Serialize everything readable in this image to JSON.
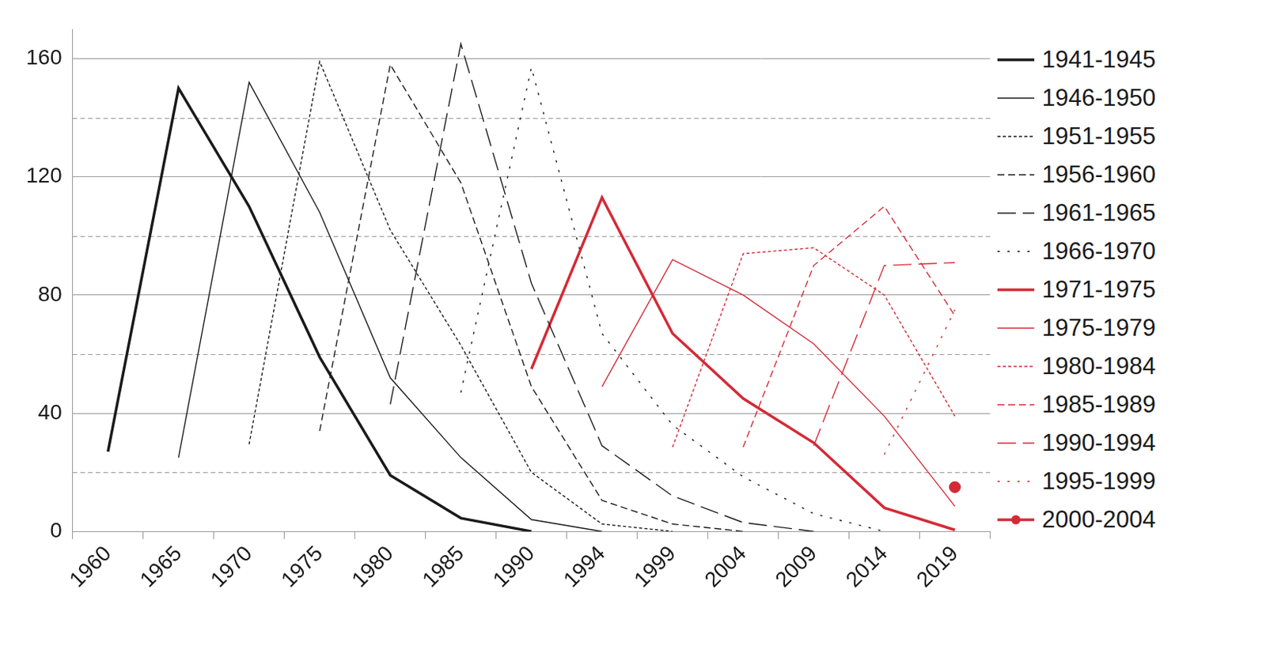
{
  "chart_data": {
    "type": "line",
    "categories": [
      "1960",
      "1965",
      "1970",
      "1975",
      "1980",
      "1985",
      "1990",
      "1994",
      "1999",
      "2004",
      "2009",
      "2014",
      "2019"
    ],
    "ylim": [
      0,
      170
    ],
    "yticks": [
      0,
      40,
      80,
      120,
      160
    ],
    "grid": true,
    "legend": "right",
    "series": [
      {
        "name": "1941-1945",
        "color": "#1a1a1a",
        "line_style": "thick",
        "values": [
          27,
          150,
          110,
          59,
          19,
          4.5,
          0,
          null,
          null,
          null,
          null,
          null,
          null
        ]
      },
      {
        "name": "1946-1950",
        "color": "#1a1a1a",
        "line_style": "solid",
        "values": [
          null,
          25,
          152,
          108,
          52,
          25,
          4,
          0,
          null,
          null,
          null,
          null,
          null
        ]
      },
      {
        "name": "1951-1955",
        "color": "#1a1a1a",
        "line_style": "dotted",
        "values": [
          null,
          null,
          29.5,
          159,
          102,
          63,
          20,
          2.5,
          0,
          null,
          null,
          null,
          null
        ]
      },
      {
        "name": "1956-1960",
        "color": "#1a1a1a",
        "line_style": "dashed",
        "values": [
          null,
          null,
          null,
          34,
          158,
          118,
          49,
          10.5,
          2.5,
          0,
          null,
          null,
          null
        ]
      },
      {
        "name": "1961-1965",
        "color": "#1a1a1a",
        "line_style": "long-dashed",
        "values": [
          null,
          null,
          null,
          null,
          43,
          165,
          84,
          29,
          12,
          3,
          0,
          null,
          null
        ]
      },
      {
        "name": "1966-1970",
        "color": "#1a1a1a",
        "line_style": "sparse-dotted",
        "values": [
          null,
          null,
          null,
          null,
          null,
          47,
          157,
          67,
          36,
          18.5,
          6,
          0,
          null
        ]
      },
      {
        "name": "1971-1975",
        "color": "#d42a36",
        "line_style": "thick",
        "values": [
          null,
          null,
          null,
          null,
          null,
          null,
          55,
          113,
          67,
          45,
          30,
          8,
          0.5
        ]
      },
      {
        "name": "1975-1979",
        "color": "#d42a36",
        "line_style": "solid",
        "values": [
          null,
          null,
          null,
          null,
          null,
          null,
          null,
          49,
          92,
          80,
          63.5,
          39,
          8.5
        ]
      },
      {
        "name": "1980-1984",
        "color": "#d42a36",
        "line_style": "dotted",
        "values": [
          null,
          null,
          null,
          null,
          null,
          null,
          null,
          null,
          28.5,
          94,
          96,
          80,
          39
        ]
      },
      {
        "name": "1985-1989",
        "color": "#d42a36",
        "line_style": "dashed",
        "values": [
          null,
          null,
          null,
          null,
          null,
          null,
          null,
          null,
          null,
          28.5,
          90,
          110,
          73
        ]
      },
      {
        "name": "1990-1994",
        "color": "#d42a36",
        "line_style": "long-dashed",
        "values": [
          null,
          null,
          null,
          null,
          null,
          null,
          null,
          null,
          null,
          null,
          29,
          90,
          91
        ]
      },
      {
        "name": "1995-1999",
        "color": "#d42a36",
        "line_style": "sparse-dotted",
        "values": [
          null,
          null,
          null,
          null,
          null,
          null,
          null,
          null,
          null,
          null,
          null,
          26,
          75
        ]
      },
      {
        "name": "2000-2004",
        "color": "#d42a36",
        "line_style": "thick",
        "marker": "circle",
        "values": [
          null,
          null,
          null,
          null,
          null,
          null,
          null,
          null,
          null,
          null,
          null,
          null,
          15
        ]
      }
    ]
  }
}
